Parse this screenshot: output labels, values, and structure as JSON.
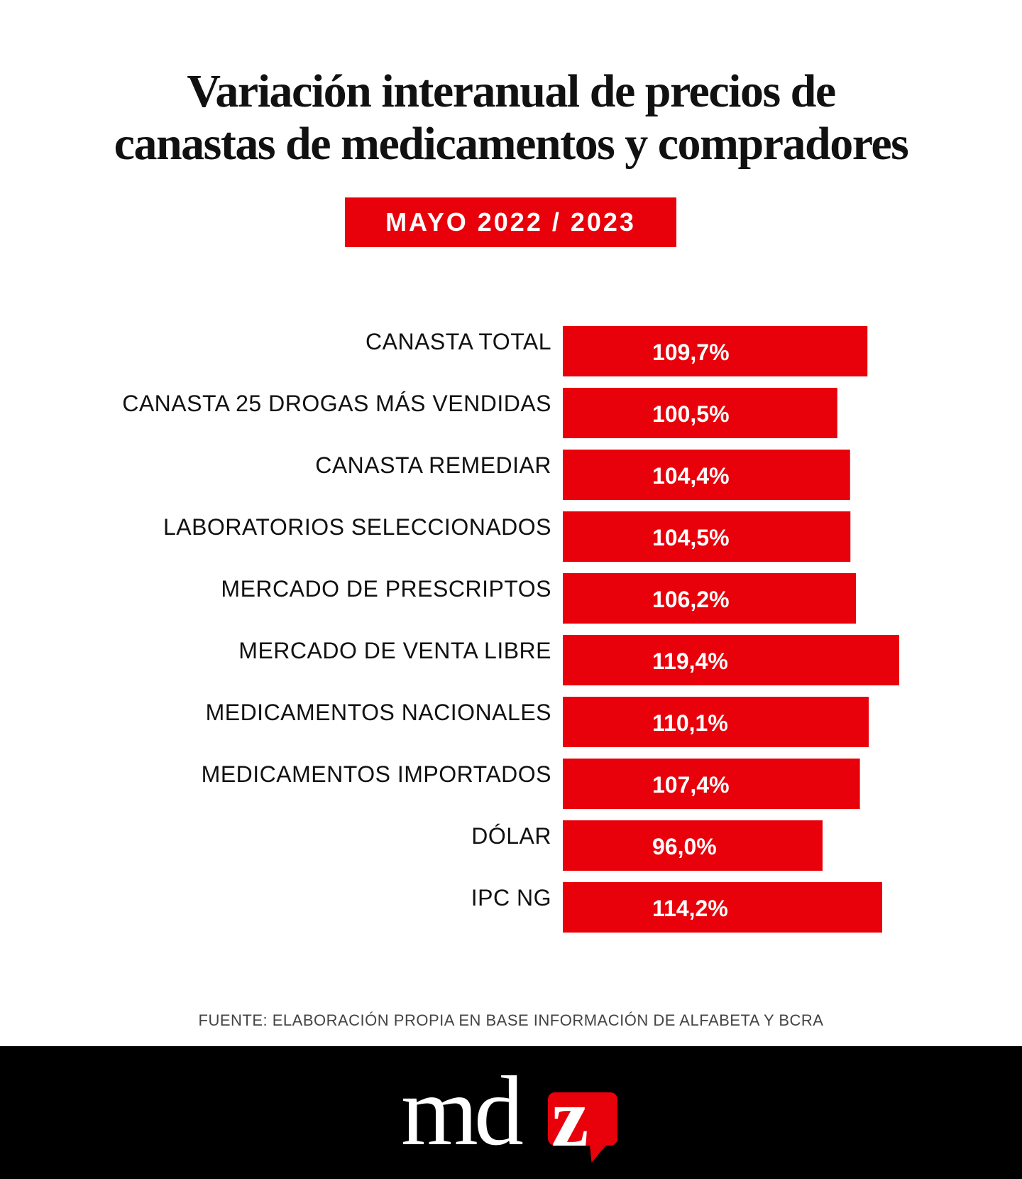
{
  "header": {
    "title_line1": "Variación interanual de precios de",
    "title_line2": "canastas de medicamentos y compradores",
    "badge": "MAYO 2022 / 2023"
  },
  "colors": {
    "accent": "#e8000a",
    "text": "#111111",
    "footer_bg": "#000000"
  },
  "chart_data": {
    "type": "bar",
    "orientation": "horizontal",
    "title": "Variación interanual de precios de canastas de medicamentos y compradores",
    "subtitle": "MAYO 2022 / 2023",
    "xlabel": "",
    "ylabel": "",
    "unit": "%",
    "grid": false,
    "legend": "none",
    "categories": [
      "CANASTA TOTAL",
      "CANASTA 25 DROGAS MÁS VENDIDAS",
      "CANASTA REMEDIAR",
      "LABORATORIOS SELECCIONADOS",
      "MERCADO DE PRESCRIPTOS",
      "MERCADO DE VENTA LIBRE",
      "MEDICAMENTOS NACIONALES",
      "MEDICAMENTOS IMPORTADOS",
      "DÓLAR",
      "IPC NG"
    ],
    "values": [
      109.7,
      100.5,
      104.4,
      104.5,
      106.2,
      119.4,
      110.1,
      107.4,
      96.0,
      114.2
    ],
    "value_labels": [
      "109,7%",
      "100,5%",
      "104,4%",
      "104,5%",
      "106,2%",
      "119,4%",
      "110,1%",
      "107,4%",
      "96,0%",
      "114,2%"
    ]
  },
  "footer": {
    "source": "FUENTE: ELABORACIÓN PROPIA EN BASE INFORMACIÓN DE ALFABETA Y BCRA",
    "logo_text": "md",
    "logo_accent_letter": "z"
  }
}
